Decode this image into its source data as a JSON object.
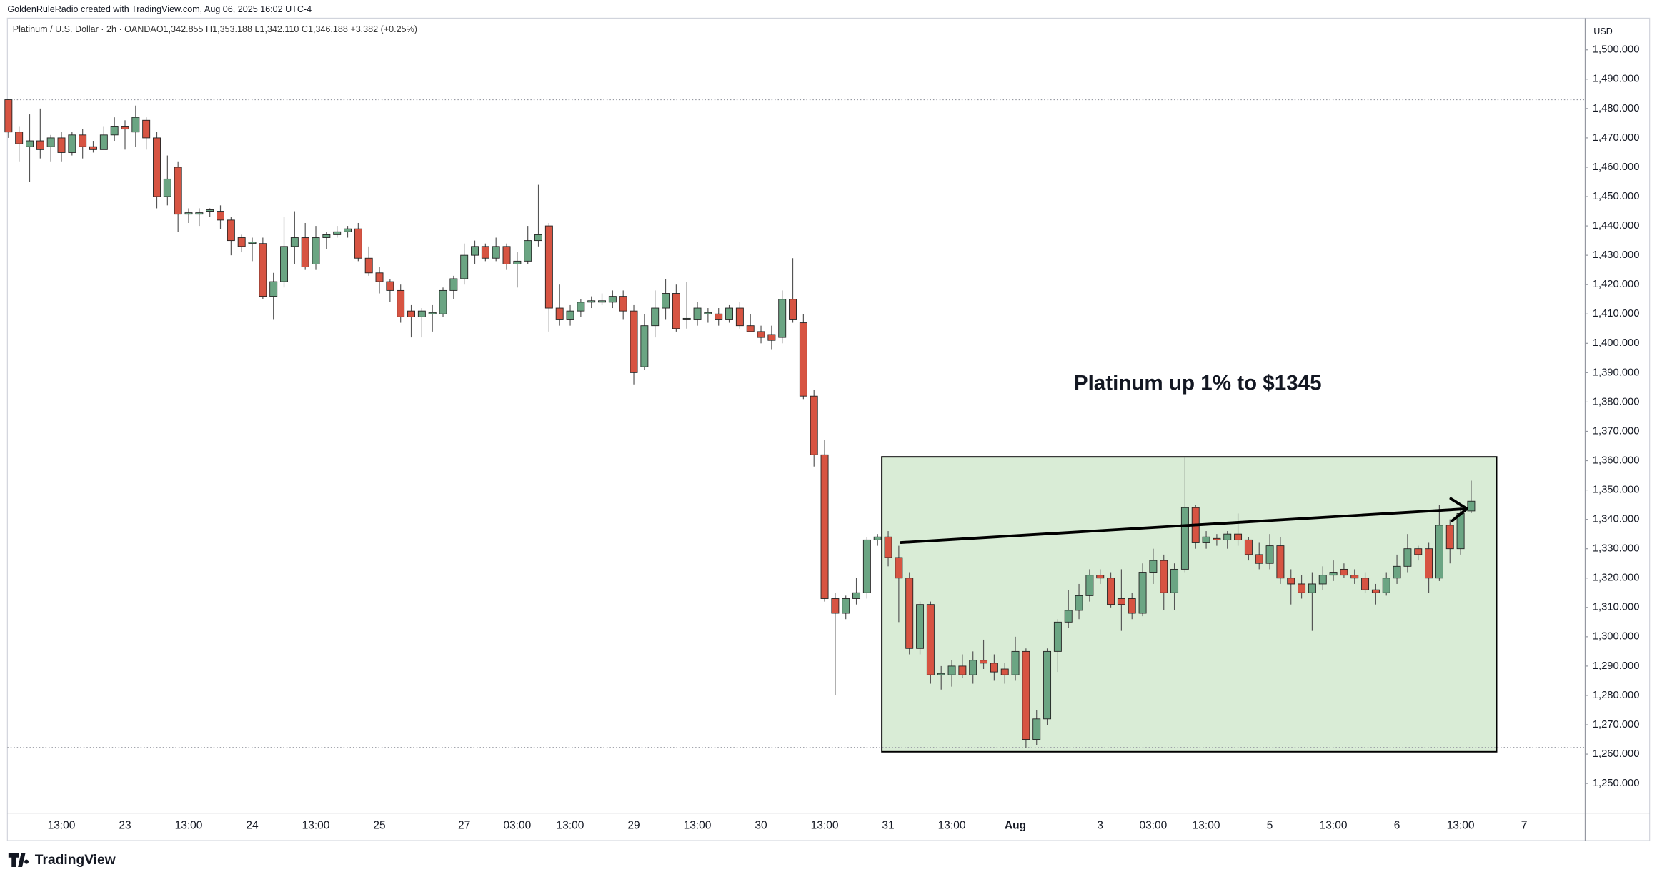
{
  "credit": "GoldenRuleRadio created with TradingView.com, Aug 06, 2025 16:02 UTC-4",
  "brand": "TradingView",
  "chart_data": {
    "type": "candlestick",
    "title": "Platinum / U.S. Dollar · 2h · OANDA",
    "ohlc_summary": "O1,342.855 H1,353.188 L1,342.110 C1,346.188 +3.382 (+0.25%)",
    "currency": "USD",
    "up_color": "#6ba583",
    "down_color": "#d75442",
    "categories": [
      null,
      null,
      null,
      null,
      null,
      "13:00",
      null,
      null,
      null,
      null,
      null,
      "23",
      null,
      null,
      null,
      null,
      null,
      "13:00",
      null,
      null,
      null,
      null,
      null,
      "24",
      null,
      null,
      null,
      null,
      null,
      "13:00",
      null,
      null,
      null,
      null,
      null,
      "25",
      null,
      null,
      null,
      null,
      null,
      null,
      null,
      "27",
      null,
      null,
      null,
      null,
      "03:00",
      null,
      null,
      null,
      null,
      "13:00",
      null,
      null,
      null,
      null,
      null,
      "29",
      null,
      null,
      null,
      null,
      null,
      "13:00",
      null,
      null,
      null,
      null,
      null,
      "30",
      null,
      null,
      null,
      null,
      null,
      "13:00",
      null,
      null,
      null,
      null,
      null,
      "31",
      null,
      null,
      null,
      null,
      null,
      "13:00",
      null,
      null,
      null,
      null,
      null,
      "Aug",
      null,
      null,
      null,
      null,
      null,
      null,
      null,
      "3",
      null,
      null,
      null,
      null,
      "03:00",
      null,
      null,
      null,
      null,
      "13:00",
      null,
      null,
      null,
      null,
      null,
      "5",
      null,
      null,
      null,
      null,
      null,
      "13:00",
      null,
      null,
      null,
      null,
      null,
      "6",
      null,
      null,
      null,
      null,
      null,
      "13:00",
      null,
      null,
      null,
      null,
      null,
      "7"
    ],
    "open": [
      1483,
      1472,
      1467,
      1469,
      1467,
      1470,
      1465,
      1471,
      1467,
      1466,
      1471,
      1474,
      1472,
      1476,
      1470,
      1450,
      1460,
      1444,
      1444,
      1445,
      1445,
      1442,
      1436,
      1434,
      1434,
      1416,
      1421,
      1433,
      1436,
      1427,
      1436,
      1437,
      1438,
      1439,
      1429,
      1424,
      1421,
      1418,
      1411,
      1409,
      1410,
      1410,
      1418,
      1422,
      1430,
      1433,
      1429,
      1433,
      1427,
      1428,
      1435,
      1440,
      1412,
      1408,
      1411,
      1414,
      1414,
      1414,
      1416,
      1411,
      1392,
      1406,
      1412,
      1417,
      1408,
      1408,
      1410,
      1410,
      1408,
      1412,
      1406,
      1404,
      1403,
      1402,
      1415,
      1407,
      1382,
      1362,
      1313,
      1308,
      1313,
      1315,
      1333,
      1334,
      1327,
      1320,
      1296,
      1311,
      1287,
      1287,
      1290,
      1287,
      1292,
      1291,
      1289,
      1287,
      1295,
      1265,
      1272,
      1295,
      1305,
      1309,
      1314,
      1321,
      1320,
      1313,
      1313,
      1308,
      1322,
      1326,
      1315,
      1323,
      1344,
      1332,
      1333.5,
      1333,
      1335,
      1333,
      1328,
      1325,
      1331,
      1320,
      1318,
      1315,
      1318,
      1321,
      1323,
      1321,
      1320,
      1316,
      1315,
      1320,
      1324,
      1330,
      1330,
      1320,
      1338,
      1330,
      1342.855,
      null,
      null,
      null,
      null,
      null
    ],
    "high": [
      1483,
      1474,
      1478,
      1480,
      1471,
      1472,
      1472,
      1473,
      1469,
      1474,
      1477,
      1476,
      1481,
      1477,
      1472,
      1464,
      1462,
      1446,
      1446,
      1446,
      1447,
      1443,
      1437,
      1436,
      1436,
      1424,
      1443,
      1445,
      1441,
      1440,
      1438,
      1440,
      1440,
      1441,
      1433,
      1426,
      1422,
      1420,
      1413,
      1412,
      1413,
      1419,
      1423,
      1434,
      1435,
      1434,
      1436,
      1434,
      1431,
      1440,
      1454,
      1441,
      1420,
      1413,
      1415,
      1416,
      1417,
      1418,
      1418,
      1413,
      1410,
      1418,
      1422,
      1420,
      1421,
      1414,
      1412,
      1412,
      1413,
      1414,
      1410,
      1406,
      1406,
      1418,
      1429,
      1410,
      1384,
      1367,
      1315,
      1314,
      1320,
      1334,
      1335,
      1336,
      1331,
      1322,
      1312,
      1312,
      1290,
      1292,
      1294,
      1295,
      1299,
      1294,
      1291,
      1300,
      1296,
      1275,
      1296,
      1306,
      1316,
      1318,
      1323,
      1323,
      1322,
      1323,
      1315,
      1325,
      1330,
      1328,
      1325,
      1361,
      1345,
      1336,
      1335,
      1336,
      1342,
      1334,
      1332,
      1335,
      1334,
      1323,
      1321,
      1322,
      1324,
      1326,
      1325,
      1323,
      1322,
      1318,
      1322,
      1328,
      1335,
      1331,
      1332,
      1345,
      1340,
      1345,
      1353.188,
      null,
      null,
      null,
      null,
      null
    ],
    "low": [
      1470,
      1462,
      1455,
      1463,
      1462,
      1462,
      1464,
      1463,
      1465,
      1466,
      1469,
      1466,
      1467,
      1466,
      1446,
      1447,
      1438,
      1441,
      1440,
      1443,
      1439,
      1430,
      1431,
      1428,
      1415,
      1408,
      1419,
      1427,
      1425,
      1425,
      1432,
      1436,
      1436,
      1428,
      1423,
      1417,
      1414,
      1407,
      1402,
      1402,
      1404,
      1409,
      1415,
      1420,
      1427,
      1428,
      1428,
      1425,
      1419,
      1427,
      1433,
      1404,
      1406,
      1406,
      1409,
      1412,
      1413,
      1412,
      1408,
      1386,
      1391,
      1402,
      1408,
      1404,
      1405,
      1406,
      1407,
      1406,
      1407,
      1405,
      1404,
      1400,
      1398,
      1400,
      1407,
      1381,
      1358,
      1312,
      1280,
      1306,
      1311,
      1313,
      1331,
      1324,
      1305,
      1294,
      1294,
      1284,
      1282,
      1283,
      1286,
      1284,
      1289,
      1285,
      1284,
      1285,
      1262,
      1263,
      1270,
      1288,
      1303,
      1306,
      1312,
      1318,
      1310,
      1302,
      1306,
      1307,
      1318,
      1309,
      1309,
      1322,
      1330,
      1330,
      1331,
      1330,
      1331,
      1326,
      1323,
      1323,
      1318,
      1311,
      1313,
      1302,
      1316,
      1319,
      1320,
      1318,
      1315,
      1311,
      1314,
      1318,
      1322,
      1326,
      1315,
      1319,
      1325,
      1328,
      1342.11,
      null,
      null,
      null,
      null,
      null
    ],
    "close": [
      1472,
      1468,
      1469,
      1466,
      1470,
      1465,
      1471,
      1467,
      1466,
      1471,
      1474,
      1473,
      1477,
      1470,
      1450,
      1456,
      1444,
      1444.5,
      1444.5,
      1445.5,
      1442,
      1435,
      1433,
      1434.5,
      1416,
      1421,
      1433,
      1436,
      1426,
      1436,
      1437,
      1438,
      1439,
      1429,
      1424,
      1421,
      1418,
      1409,
      1409,
      1411,
      1410.5,
      1418,
      1422,
      1430,
      1433,
      1429,
      1433,
      1427,
      1428,
      1435,
      1437,
      1412,
      1408,
      1411,
      1414,
      1414.5,
      1414.5,
      1416,
      1411,
      1390,
      1406,
      1412,
      1417,
      1405,
      1408.5,
      1412,
      1410.5,
      1408,
      1412,
      1406,
      1404,
      1402,
      1401,
      1415,
      1408,
      1382,
      1362,
      1313,
      1308,
      1313,
      1315,
      1333,
      1334,
      1327,
      1320,
      1296,
      1311,
      1287,
      1287.5,
      1290,
      1287,
      1292,
      1291,
      1288,
      1287,
      1295,
      1265,
      1272,
      1295,
      1305,
      1309,
      1314,
      1321,
      1320,
      1311,
      1311,
      1308,
      1322,
      1326,
      1315,
      1323,
      1344,
      1332,
      1334,
      1333,
      1335,
      1333,
      1328,
      1325,
      1331,
      1320,
      1318,
      1315,
      1318,
      1321,
      1322,
      1321,
      1320,
      1316,
      1315,
      1320,
      1324,
      1330,
      1328,
      1320,
      1338,
      1330,
      1342,
      1346.188,
      null,
      null,
      null,
      null,
      null
    ],
    "ylim": [
      1239.9,
      1510.8
    ],
    "yticks": [
      {
        "value": 1250,
        "label": "1,250.000"
      },
      {
        "value": 1260,
        "label": "1,260.000"
      },
      {
        "value": 1270,
        "label": "1,270.000"
      },
      {
        "value": 1280,
        "label": "1,280.000"
      },
      {
        "value": 1290,
        "label": "1,290.000"
      },
      {
        "value": 1300,
        "label": "1,300.000"
      },
      {
        "value": 1310,
        "label": "1,310.000"
      },
      {
        "value": 1320,
        "label": "1,320.000"
      },
      {
        "value": 1330,
        "label": "1,330.000"
      },
      {
        "value": 1340,
        "label": "1,340.000"
      },
      {
        "value": 1350,
        "label": "1,350.000"
      },
      {
        "value": 1360,
        "label": "1,360.000"
      },
      {
        "value": 1370,
        "label": "1,370.000"
      },
      {
        "value": 1380,
        "label": "1,380.000"
      },
      {
        "value": 1390,
        "label": "1,390.000"
      },
      {
        "value": 1400,
        "label": "1,400.000"
      },
      {
        "value": 1410,
        "label": "1,410.000"
      },
      {
        "value": 1420,
        "label": "1,420.000"
      },
      {
        "value": 1430,
        "label": "1,430.000"
      },
      {
        "value": 1440,
        "label": "1,440.000"
      },
      {
        "value": 1450,
        "label": "1,450.000"
      },
      {
        "value": 1460,
        "label": "1,460.000"
      },
      {
        "value": 1470,
        "label": "1,470.000"
      },
      {
        "value": 1480,
        "label": "1,480.000"
      },
      {
        "value": 1490,
        "label": "1,490.000"
      },
      {
        "value": 1500,
        "label": "1,500.000"
      }
    ],
    "reference_lines": [
      1483,
      1262.3
    ],
    "box": {
      "x": [
        82.4,
        140.4
      ],
      "y": [
        1260.8,
        1361.3
      ],
      "color": "#d9ecd6"
    },
    "arrow": {
      "x": [
        84.2,
        137.6
      ],
      "y": [
        1332.1,
        1343.6
      ]
    },
    "annotation": {
      "text": "Platinum up 1% to $1345",
      "x": 112.2,
      "y": 1386
    }
  }
}
